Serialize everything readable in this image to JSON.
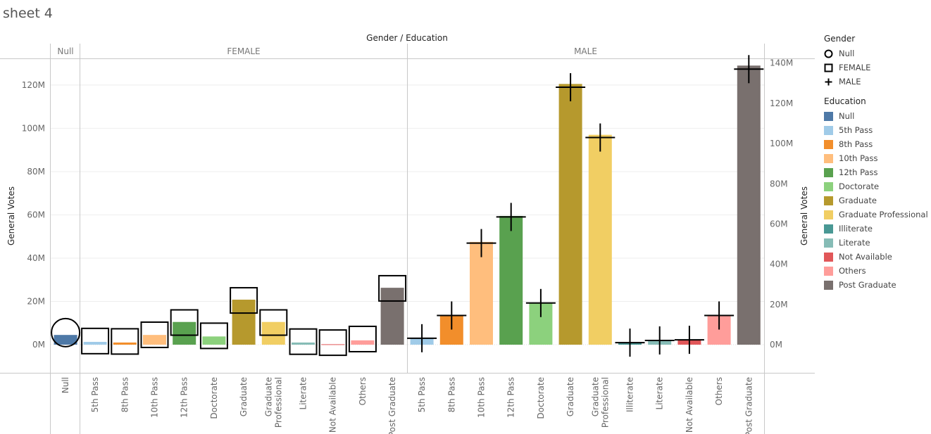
{
  "sheet_title": "sheet 4",
  "colors": {
    "Null": "#4e79a7",
    "5th Pass": "#a0cbe8",
    "8th Pass": "#f28e2b",
    "10th Pass": "#ffbe7d",
    "12th Pass": "#59a14f",
    "Doctorate": "#8cd17d",
    "Graduate": "#b6992d",
    "Graduate Professional": "#f1ce63",
    "Illiterate": "#499894",
    "Literate": "#86bcb6",
    "Not Available": "#e15759",
    "Others": "#ff9d9a",
    "Post Graduate": "#79706e"
  },
  "legend": {
    "gender_title": "Gender",
    "gender_items": [
      {
        "label": "Null",
        "shape": "circle"
      },
      {
        "label": "FEMALE",
        "shape": "square"
      },
      {
        "label": "MALE",
        "shape": "plus"
      }
    ],
    "education_title": "Education",
    "education_items": [
      "Null",
      "5th Pass",
      "8th Pass",
      "10th Pass",
      "12th Pass",
      "Doctorate",
      "Graduate",
      "Graduate Professional",
      "Illiterate",
      "Literate",
      "Not Available",
      "Others",
      "Post Graduate"
    ]
  },
  "chart_data": {
    "type": "bar",
    "title": "Gender / Education",
    "ylabel": "General Votes",
    "y2label": "General Votes",
    "ylim": [
      -13000000,
      132000000
    ],
    "y_ticks": [
      0,
      20000000,
      40000000,
      60000000,
      80000000,
      100000000,
      120000000
    ],
    "y_tick_labels": [
      "0M",
      "20M",
      "40M",
      "60M",
      "80M",
      "100M",
      "120M"
    ],
    "y2lim": [
      -14000000,
      142000000
    ],
    "y2_ticks": [
      0,
      20000000,
      40000000,
      60000000,
      80000000,
      100000000,
      120000000,
      140000000
    ],
    "y2_tick_labels": [
      "0M",
      "20M",
      "40M",
      "60M",
      "80M",
      "100M",
      "120M",
      "140M"
    ],
    "grid": true,
    "legend_position": "right",
    "panels": [
      {
        "name": "Null",
        "shape": "circle",
        "categories": [
          "Null"
        ],
        "bars": [
          4500000
        ],
        "marks": [
          6000000
        ]
      },
      {
        "name": "FEMALE",
        "shape": "square",
        "categories": [
          "5th Pass",
          "8th Pass",
          "10th Pass",
          "12th Pass",
          "Doctorate",
          "Graduate",
          "Graduate Professional",
          "Literate",
          "Not Available",
          "Others",
          "Post Graduate"
        ],
        "bars": [
          1300000,
          1000000,
          4500000,
          10500000,
          3800000,
          20800000,
          10500000,
          1000000,
          200000,
          2000000,
          26300000
        ],
        "marks": [
          1800000,
          1600000,
          4900000,
          11000000,
          4400000,
          22000000,
          11000000,
          1500000,
          1000000,
          2800000,
          28000000
        ]
      },
      {
        "name": "MALE",
        "shape": "plus",
        "categories": [
          "5th Pass",
          "8th Pass",
          "10th Pass",
          "12th Pass",
          "Doctorate",
          "Graduate",
          "Graduate Professional",
          "Illiterate",
          "Literate",
          "Not Available",
          "Others",
          "Post Graduate"
        ],
        "bars": [
          3000000,
          13500000,
          47500000,
          59500000,
          19500000,
          120500000,
          97000000,
          1000000,
          2000000,
          2300000,
          13500000,
          129000000
        ],
        "marks": [
          3200000,
          14500000,
          50500000,
          63500000,
          20700000,
          128000000,
          103000000,
          1000000,
          2100000,
          2400000,
          14500000,
          137000000
        ]
      }
    ]
  }
}
